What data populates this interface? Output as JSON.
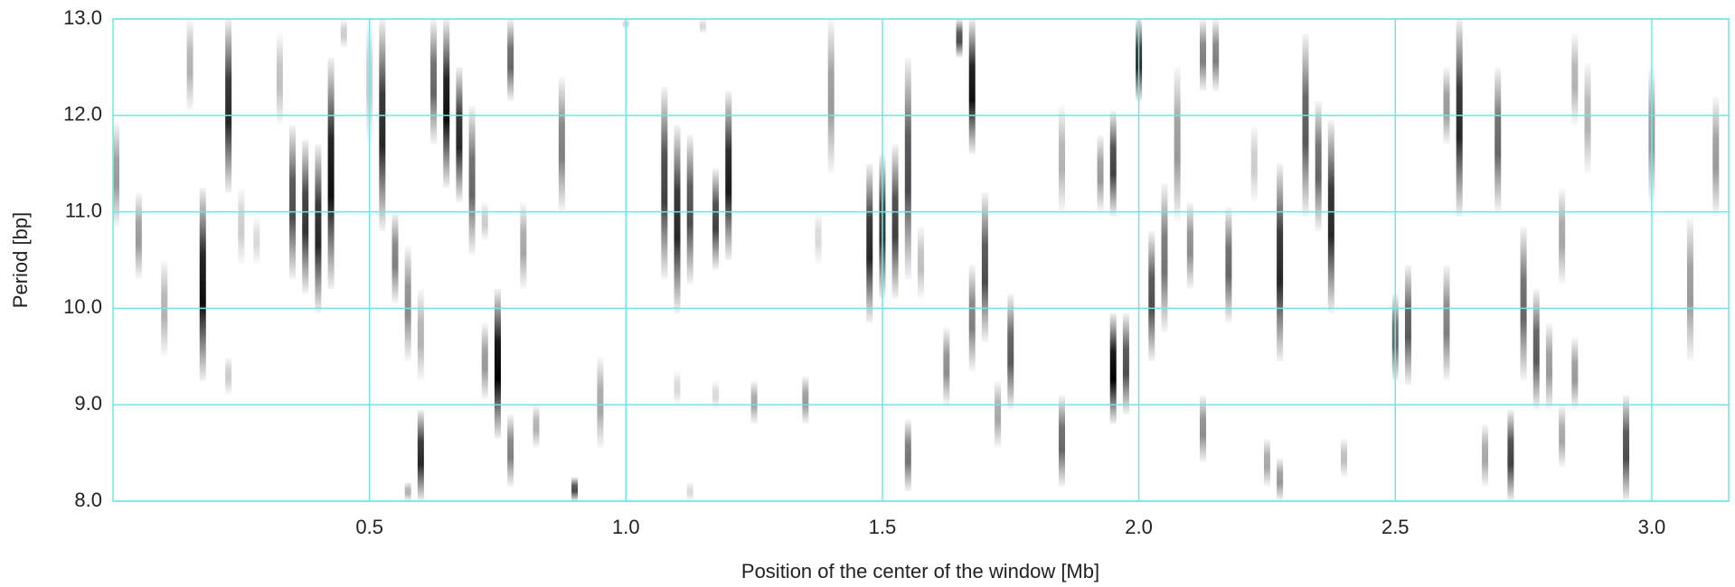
{
  "chart_data": {
    "type": "heatmap",
    "xlabel": "Position of the center of the window [Mb]",
    "ylabel": "Period [bp]",
    "color": "#000000",
    "grid": true,
    "xlim": [
      0,
      3.15
    ],
    "ylim": [
      8.0,
      13.0
    ],
    "xticks": [
      {
        "value": 0.5,
        "label": "0.5"
      },
      {
        "value": 1.0,
        "label": "1.0"
      },
      {
        "value": 1.5,
        "label": "1.5"
      },
      {
        "value": 2.0,
        "label": "2.0"
      },
      {
        "value": 2.5,
        "label": "2.5"
      },
      {
        "value": 3.0,
        "label": "3.0"
      }
    ],
    "yticks": [
      {
        "value": 8.0,
        "label": "8.0"
      },
      {
        "value": 9.0,
        "label": "9.0"
      },
      {
        "value": 10.0,
        "label": "10.0"
      },
      {
        "value": 11.0,
        "label": "11.0"
      },
      {
        "value": 12.0,
        "label": "12.0"
      },
      {
        "value": 13.0,
        "label": "13.0"
      }
    ],
    "x": [
      0.0,
      0.05,
      0.1,
      0.15,
      0.175,
      0.225,
      0.225,
      0.25,
      0.28,
      0.325,
      0.35,
      0.375,
      0.4,
      0.425,
      0.45,
      0.5,
      0.525,
      0.55,
      0.575,
      0.6,
      0.6,
      0.575,
      0.625,
      0.65,
      0.675,
      0.7,
      0.725,
      0.725,
      0.75,
      0.775,
      0.775,
      0.8,
      0.825,
      0.875,
      0.9,
      0.95,
      1.0,
      1.075,
      1.1,
      1.1,
      1.125,
      1.125,
      1.15,
      1.175,
      1.2,
      1.175,
      1.25,
      1.35,
      1.375,
      1.4,
      1.475,
      1.5,
      1.525,
      1.55,
      1.55,
      1.575,
      1.625,
      1.65,
      1.675,
      1.675,
      1.7,
      1.725,
      1.75,
      1.85,
      1.85,
      1.925,
      1.95,
      1.95,
      1.975,
      2.0,
      2.025,
      2.05,
      2.075,
      2.1,
      2.125,
      2.125,
      2.15,
      2.175,
      2.225,
      2.25,
      2.275,
      2.275,
      2.325,
      2.35,
      2.375,
      2.4,
      2.5,
      2.525,
      2.6,
      2.6,
      2.625,
      2.7,
      2.675,
      2.725,
      2.75,
      2.775,
      2.8,
      2.825,
      2.825,
      2.85,
      2.85,
      2.875,
      2.95,
      3.0,
      3.075,
      3.125
    ],
    "y_low": [
      10.84,
      10.3,
      9.5,
      12.05,
      9.25,
      11.2,
      9.1,
      10.45,
      10.45,
      11.9,
      10.3,
      10.15,
      9.95,
      10.2,
      12.7,
      11.7,
      10.8,
      10.05,
      9.45,
      9.25,
      8.0,
      8.0,
      11.7,
      11.25,
      11.1,
      10.55,
      10.7,
      9.05,
      8.65,
      12.15,
      8.15,
      10.2,
      8.55,
      11.0,
      8.0,
      8.55,
      12.9,
      10.3,
      9.95,
      9.0,
      10.25,
      8.0,
      12.85,
      10.4,
      10.5,
      8.95,
      8.8,
      8.8,
      10.45,
      11.4,
      9.85,
      10.1,
      10.1,
      10.3,
      8.1,
      10.1,
      9.0,
      12.6,
      11.6,
      9.35,
      9.65,
      8.55,
      8.95,
      11.0,
      8.15,
      11.0,
      10.95,
      8.8,
      8.9,
      12.15,
      9.45,
      9.75,
      10.9,
      10.2,
      8.4,
      12.25,
      12.25,
      9.85,
      11.1,
      8.15,
      9.45,
      8.0,
      10.95,
      10.8,
      9.95,
      8.25,
      9.25,
      9.2,
      9.25,
      11.7,
      10.95,
      11.0,
      8.15,
      8.0,
      9.25,
      8.95,
      8.95,
      10.25,
      8.35,
      8.95,
      11.9,
      11.4,
      8.0,
      11.1,
      9.45,
      10.95
    ],
    "y_high": [
      11.93,
      11.2,
      10.5,
      13.0,
      11.25,
      13.0,
      9.5,
      11.25,
      10.95,
      12.85,
      11.9,
      11.75,
      11.7,
      12.6,
      13.0,
      13.0,
      13.0,
      11.0,
      10.65,
      10.2,
      8.95,
      8.2,
      13.0,
      13.0,
      12.5,
      12.1,
      11.1,
      9.85,
      10.2,
      13.0,
      8.9,
      11.1,
      9.0,
      12.4,
      8.25,
      9.5,
      13.0,
      12.3,
      11.9,
      9.35,
      11.8,
      8.2,
      13.0,
      11.45,
      12.25,
      9.25,
      9.25,
      9.3,
      11.0,
      13.0,
      11.5,
      11.6,
      11.7,
      12.6,
      8.85,
      10.85,
      9.8,
      13.0,
      13.0,
      10.45,
      11.2,
      9.25,
      10.15,
      12.1,
      9.1,
      11.8,
      12.05,
      9.95,
      9.95,
      13.0,
      10.8,
      11.3,
      12.5,
      11.1,
      9.1,
      13.0,
      13.0,
      11.05,
      11.9,
      8.65,
      11.5,
      8.45,
      12.85,
      12.15,
      11.95,
      8.65,
      10.15,
      10.45,
      10.45,
      12.5,
      13.0,
      12.5,
      8.8,
      8.95,
      10.85,
      10.2,
      9.85,
      11.25,
      9.0,
      9.7,
      12.85,
      12.55,
      9.1,
      12.5,
      10.95,
      12.2
    ],
    "values": [
      0.4,
      0.4,
      0.3,
      0.3,
      0.95,
      0.85,
      0.2,
      0.2,
      0.15,
      0.25,
      0.7,
      0.8,
      0.85,
      0.95,
      0.2,
      0.2,
      0.85,
      0.5,
      0.45,
      0.3,
      0.85,
      0.3,
      0.6,
      0.95,
      0.85,
      0.6,
      0.2,
      0.4,
      1.0,
      0.6,
      0.5,
      0.35,
      0.3,
      0.5,
      0.7,
      0.35,
      0.15,
      0.75,
      0.85,
      0.15,
      0.7,
      0.15,
      0.15,
      0.75,
      0.9,
      0.15,
      0.35,
      0.4,
      0.15,
      0.4,
      0.85,
      0.8,
      0.75,
      0.7,
      0.55,
      0.25,
      0.45,
      0.7,
      0.95,
      0.5,
      0.7,
      0.35,
      0.65,
      0.3,
      0.6,
      0.4,
      0.75,
      1.0,
      0.7,
      0.85,
      0.7,
      0.55,
      0.4,
      0.45,
      0.45,
      0.5,
      0.5,
      0.6,
      0.2,
      0.35,
      0.85,
      0.4,
      0.65,
      0.6,
      0.85,
      0.25,
      0.6,
      0.65,
      0.5,
      0.4,
      0.85,
      0.6,
      0.35,
      0.75,
      0.6,
      0.65,
      0.4,
      0.35,
      0.35,
      0.4,
      0.3,
      0.3,
      0.7,
      0.4,
      0.4,
      0.4
    ]
  }
}
